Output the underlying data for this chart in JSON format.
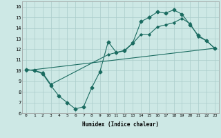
{
  "xlabel": "Humidex (Indice chaleur)",
  "xlim": [
    -0.5,
    23.5
  ],
  "ylim": [
    6,
    16.5
  ],
  "xticks": [
    0,
    1,
    2,
    3,
    4,
    5,
    6,
    7,
    8,
    9,
    10,
    11,
    12,
    13,
    14,
    15,
    16,
    17,
    18,
    19,
    20,
    21,
    22,
    23
  ],
  "yticks": [
    6,
    7,
    8,
    9,
    10,
    11,
    12,
    13,
    14,
    15,
    16
  ],
  "bg_color": "#cde8e5",
  "grid_color": "#aaccca",
  "line_color": "#1a6b60",
  "line1_x": [
    0,
    1,
    2,
    3,
    4,
    5,
    6,
    7,
    8,
    9,
    10,
    11,
    12,
    13,
    14,
    15,
    16,
    17,
    18,
    19,
    20,
    21,
    22,
    23
  ],
  "line1_y": [
    10.1,
    10.0,
    9.7,
    8.6,
    7.6,
    7.0,
    6.4,
    6.6,
    8.4,
    9.9,
    12.7,
    11.7,
    11.9,
    12.6,
    14.6,
    15.0,
    15.5,
    15.4,
    15.7,
    15.3,
    14.3,
    13.3,
    12.8,
    12.1
  ],
  "line2_x": [
    0,
    1,
    2,
    3,
    10,
    11,
    12,
    13,
    14,
    15,
    16,
    17,
    18,
    19,
    20,
    21,
    22,
    23
  ],
  "line2_y": [
    10.1,
    10.0,
    9.8,
    8.7,
    11.5,
    11.7,
    11.85,
    12.55,
    13.4,
    13.4,
    14.1,
    14.3,
    14.5,
    14.9,
    14.4,
    13.2,
    12.8,
    12.1
  ],
  "line3_x": [
    0,
    23
  ],
  "line3_y": [
    10.0,
    12.1
  ],
  "figsize": [
    3.2,
    2.0
  ],
  "dpi": 100
}
